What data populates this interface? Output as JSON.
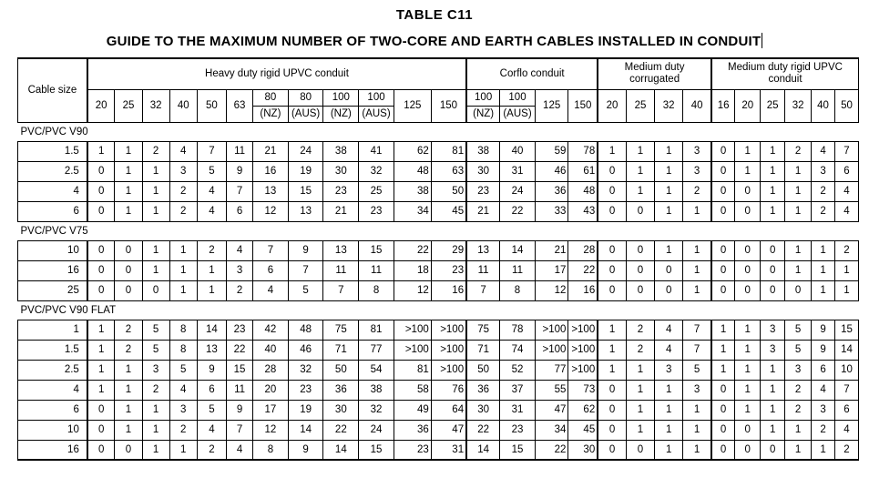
{
  "table_title": "TABLE   C11",
  "table_subtitle": "GUIDE TO THE MAXIMUM NUMBER OF TWO-CORE AND EARTH CABLES INSTALLED IN CONDUIT",
  "header": {
    "cable_size_label": "Cable size",
    "groups": [
      {
        "name": "Heavy duty rigid UPVC conduit",
        "sizes": [
          [
            "20"
          ],
          [
            "25"
          ],
          [
            "32"
          ],
          [
            "40"
          ],
          [
            "50"
          ],
          [
            "63"
          ],
          [
            "80",
            "(NZ)"
          ],
          [
            "80",
            "(AUS)"
          ],
          [
            "100",
            "(NZ)"
          ],
          [
            "100",
            "(AUS)"
          ],
          [
            "125"
          ],
          [
            "150"
          ]
        ]
      },
      {
        "name": "Corflo conduit",
        "sizes": [
          [
            "100",
            "(NZ)"
          ],
          [
            "100",
            "(AUS)"
          ],
          [
            "125"
          ],
          [
            "150"
          ]
        ]
      },
      {
        "name": "Medium duty corrugated",
        "sizes": [
          [
            "20"
          ],
          [
            "25"
          ],
          [
            "32"
          ],
          [
            "40"
          ]
        ]
      },
      {
        "name": "Medium duty rigid UPVC conduit",
        "sizes": [
          [
            "16"
          ],
          [
            "20"
          ],
          [
            "25"
          ],
          [
            "32"
          ],
          [
            "40"
          ],
          [
            "50"
          ]
        ]
      }
    ]
  },
  "sections": [
    {
      "name": "PVC/PVC V90",
      "rows": [
        {
          "size": "1.5",
          "values": [
            "1",
            "1",
            "2",
            "4",
            "7",
            "11",
            "21",
            "24",
            "38",
            "41",
            "62",
            "81",
            "38",
            "40",
            "59",
            "78",
            "1",
            "1",
            "1",
            "3",
            "0",
            "1",
            "1",
            "2",
            "4",
            "7"
          ]
        },
        {
          "size": "2.5",
          "values": [
            "0",
            "1",
            "1",
            "3",
            "5",
            "9",
            "16",
            "19",
            "30",
            "32",
            "48",
            "63",
            "30",
            "31",
            "46",
            "61",
            "0",
            "1",
            "1",
            "3",
            "0",
            "1",
            "1",
            "1",
            "3",
            "6"
          ]
        },
        {
          "size": "4",
          "values": [
            "0",
            "1",
            "1",
            "2",
            "4",
            "7",
            "13",
            "15",
            "23",
            "25",
            "38",
            "50",
            "23",
            "24",
            "36",
            "48",
            "0",
            "1",
            "1",
            "2",
            "0",
            "0",
            "1",
            "1",
            "2",
            "4"
          ]
        },
        {
          "size": "6",
          "values": [
            "0",
            "1",
            "1",
            "2",
            "4",
            "6",
            "12",
            "13",
            "21",
            "23",
            "34",
            "45",
            "21",
            "22",
            "33",
            "43",
            "0",
            "0",
            "1",
            "1",
            "0",
            "0",
            "1",
            "1",
            "2",
            "4"
          ]
        }
      ]
    },
    {
      "name": "PVC/PVC V75",
      "rows": [
        {
          "size": "10",
          "values": [
            "0",
            "0",
            "1",
            "1",
            "2",
            "4",
            "7",
            "9",
            "13",
            "15",
            "22",
            "29",
            "13",
            "14",
            "21",
            "28",
            "0",
            "0",
            "1",
            "1",
            "0",
            "0",
            "0",
            "1",
            "1",
            "2"
          ]
        },
        {
          "size": "16",
          "values": [
            "0",
            "0",
            "1",
            "1",
            "1",
            "3",
            "6",
            "7",
            "11",
            "11",
            "18",
            "23",
            "11",
            "11",
            "17",
            "22",
            "0",
            "0",
            "0",
            "1",
            "0",
            "0",
            "0",
            "1",
            "1",
            "1"
          ]
        },
        {
          "size": "25",
          "values": [
            "0",
            "0",
            "0",
            "1",
            "1",
            "2",
            "4",
            "5",
            "7",
            "8",
            "12",
            "16",
            "7",
            "8",
            "12",
            "16",
            "0",
            "0",
            "0",
            "1",
            "0",
            "0",
            "0",
            "0",
            "1",
            "1"
          ]
        }
      ]
    },
    {
      "name": "PVC/PVC V90 FLAT",
      "rows": [
        {
          "size": "1",
          "values": [
            "1",
            "2",
            "5",
            "8",
            "14",
            "23",
            "42",
            "48",
            "75",
            "81",
            ">100",
            ">100",
            "75",
            "78",
            ">100",
            ">100",
            "1",
            "2",
            "4",
            "7",
            "1",
            "1",
            "3",
            "5",
            "9",
            "15"
          ]
        },
        {
          "size": "1.5",
          "values": [
            "1",
            "2",
            "5",
            "8",
            "13",
            "22",
            "40",
            "46",
            "71",
            "77",
            ">100",
            ">100",
            "71",
            "74",
            ">100",
            ">100",
            "1",
            "2",
            "4",
            "7",
            "1",
            "1",
            "3",
            "5",
            "9",
            "14"
          ]
        },
        {
          "size": "2.5",
          "values": [
            "1",
            "1",
            "3",
            "5",
            "9",
            "15",
            "28",
            "32",
            "50",
            "54",
            "81",
            ">100",
            "50",
            "52",
            "77",
            ">100",
            "1",
            "1",
            "3",
            "5",
            "1",
            "1",
            "1",
            "3",
            "6",
            "10"
          ]
        },
        {
          "size": "4",
          "values": [
            "1",
            "1",
            "2",
            "4",
            "6",
            "11",
            "20",
            "23",
            "36",
            "38",
            "58",
            "76",
            "36",
            "37",
            "55",
            "73",
            "0",
            "1",
            "1",
            "3",
            "0",
            "1",
            "1",
            "2",
            "4",
            "7"
          ]
        },
        {
          "size": "6",
          "values": [
            "0",
            "1",
            "1",
            "3",
            "5",
            "9",
            "17",
            "19",
            "30",
            "32",
            "49",
            "64",
            "30",
            "31",
            "47",
            "62",
            "0",
            "1",
            "1",
            "1",
            "0",
            "1",
            "1",
            "2",
            "3",
            "6"
          ]
        },
        {
          "size": "10",
          "values": [
            "0",
            "1",
            "1",
            "2",
            "4",
            "7",
            "12",
            "14",
            "22",
            "24",
            "36",
            "47",
            "22",
            "23",
            "34",
            "45",
            "0",
            "1",
            "1",
            "1",
            "0",
            "0",
            "1",
            "1",
            "2",
            "4"
          ]
        },
        {
          "size": "16",
          "values": [
            "0",
            "0",
            "1",
            "1",
            "2",
            "4",
            "8",
            "9",
            "14",
            "15",
            "23",
            "31",
            "14",
            "15",
            "22",
            "30",
            "0",
            "0",
            "1",
            "1",
            "0",
            "0",
            "0",
            "1",
            "1",
            "2"
          ]
        }
      ]
    }
  ]
}
